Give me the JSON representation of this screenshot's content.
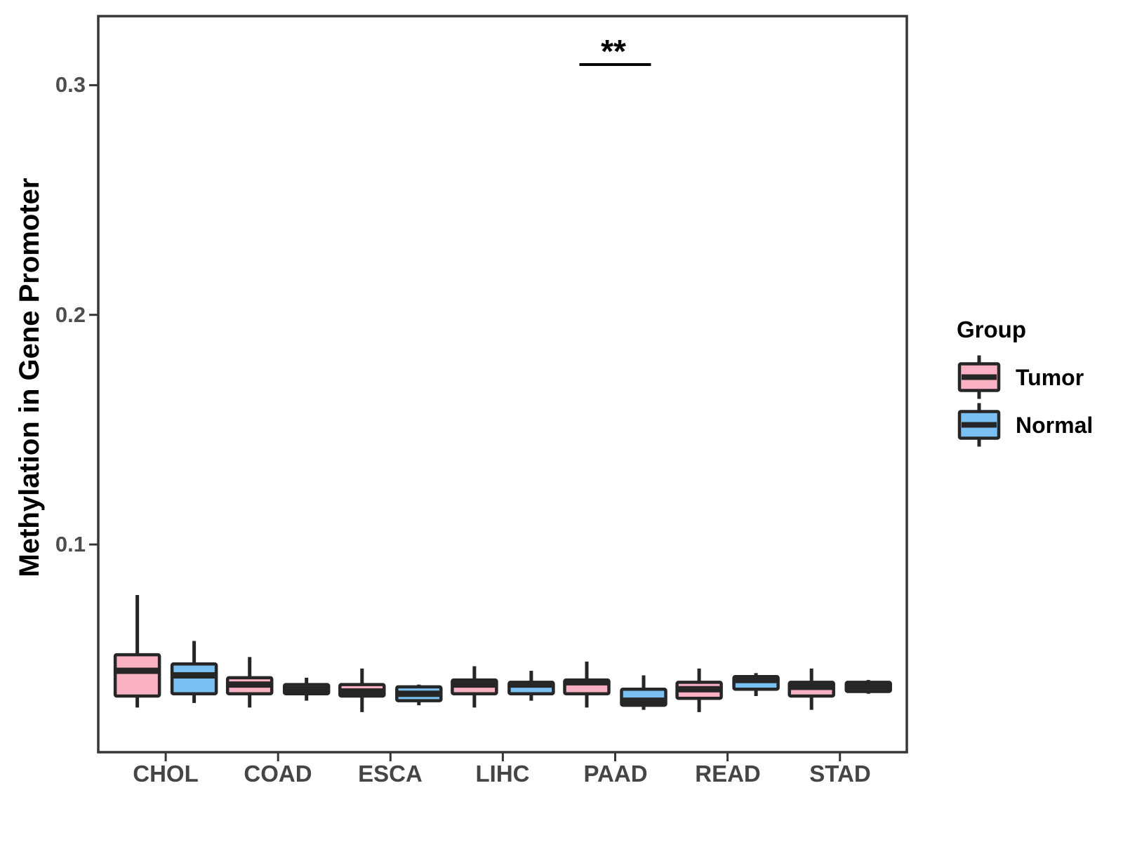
{
  "figure": {
    "background": "#FFFFFF",
    "axis_color": "#363636",
    "box_outline_color": "#262626",
    "tick_label_color": "#454545",
    "y_axis_tick_labels": [
      "0.1",
      "0.2",
      "0.3"
    ],
    "legend_title": "Group"
  },
  "chart_data": {
    "type": "boxplot",
    "title": "",
    "xlabel": "",
    "ylabel": "Methylation in Gene Promoter",
    "categories": [
      "CHOL",
      "COAD",
      "ESCA",
      "LIHC",
      "PAAD",
      "READ",
      "STAD"
    ],
    "yticks": [
      0.1,
      0.2,
      0.3
    ],
    "ylim": [
      0.01,
      0.33
    ],
    "grid": false,
    "legend_position": "right",
    "series": [
      {
        "name": "Tumor",
        "color": "#F9B1C3",
        "boxes": [
          {
            "min": 0.029,
            "q1": 0.034,
            "median": 0.045,
            "q3": 0.052,
            "max": 0.078
          },
          {
            "min": 0.029,
            "q1": 0.035,
            "median": 0.039,
            "q3": 0.042,
            "max": 0.051
          },
          {
            "min": 0.027,
            "q1": 0.034,
            "median": 0.036,
            "q3": 0.039,
            "max": 0.046
          },
          {
            "min": 0.029,
            "q1": 0.035,
            "median": 0.039,
            "q3": 0.041,
            "max": 0.047
          },
          {
            "min": 0.029,
            "q1": 0.035,
            "median": 0.04,
            "q3": 0.041,
            "max": 0.049
          },
          {
            "min": 0.027,
            "q1": 0.033,
            "median": 0.037,
            "q3": 0.04,
            "max": 0.046
          },
          {
            "min": 0.028,
            "q1": 0.034,
            "median": 0.038,
            "q3": 0.04,
            "max": 0.046
          }
        ]
      },
      {
        "name": "Normal",
        "color": "#7AC0F3",
        "boxes": [
          {
            "min": 0.031,
            "q1": 0.035,
            "median": 0.043,
            "q3": 0.048,
            "max": 0.058
          },
          {
            "min": 0.032,
            "q1": 0.035,
            "median": 0.037,
            "q3": 0.039,
            "max": 0.042
          },
          {
            "min": 0.03,
            "q1": 0.032,
            "median": 0.035,
            "q3": 0.038,
            "max": 0.039
          },
          {
            "min": 0.032,
            "q1": 0.035,
            "median": 0.039,
            "q3": 0.04,
            "max": 0.045
          },
          {
            "min": 0.028,
            "q1": 0.03,
            "median": 0.032,
            "q3": 0.037,
            "max": 0.043
          },
          {
            "min": 0.034,
            "q1": 0.037,
            "median": 0.041,
            "q3": 0.0425,
            "max": 0.044
          },
          {
            "min": 0.035,
            "q1": 0.036,
            "median": 0.038,
            "q3": 0.04,
            "max": 0.041
          }
        ]
      }
    ],
    "significance": [
      {
        "category": "PAAD",
        "label": "**",
        "y": 0.309
      }
    ]
  }
}
